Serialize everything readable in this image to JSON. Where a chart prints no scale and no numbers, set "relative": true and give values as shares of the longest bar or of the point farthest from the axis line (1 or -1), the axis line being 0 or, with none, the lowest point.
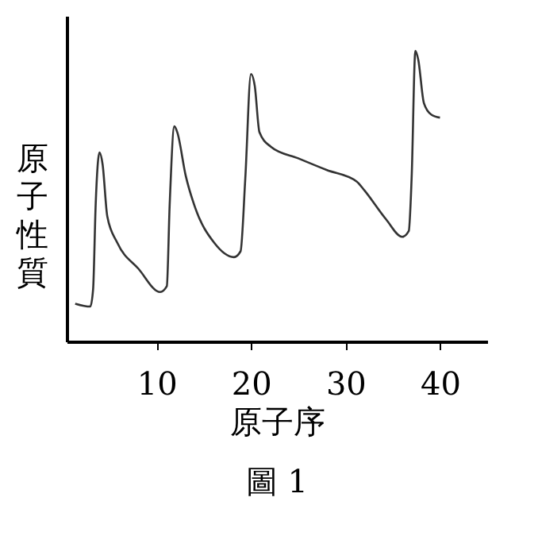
{
  "chart_data": {
    "type": "line",
    "relative": true,
    "xlabel": "原子序",
    "ylabel": "原子性質",
    "annotations": [
      "圖 1"
    ],
    "xlim": [
      0.5,
      45
    ],
    "xticks": [
      10,
      20,
      30,
      40
    ],
    "grid": false,
    "marker": "none",
    "line_style": "solid",
    "series": [
      {
        "color": "#333333",
        "x": [
          1.4,
          3.0,
          3.3,
          3.57,
          3.97,
          4.3,
          4.8,
          5.85,
          8.1,
          10.4,
          11.1,
          11.4,
          11.9,
          12.2,
          13.1,
          14.1,
          16.1,
          18.2,
          18.9,
          19.4,
          20.0,
          20.4,
          20.9,
          22.1,
          25.0,
          28.0,
          31.2,
          32.0,
          34.3,
          36.0,
          36.7,
          37.0,
          37.4,
          37.7,
          38.3,
          39.1,
          40.0
        ],
        "values": [
          0.13,
          0.12,
          0.18,
          0.47,
          0.65,
          0.61,
          0.43,
          0.34,
          0.25,
          0.17,
          0.19,
          0.47,
          0.74,
          0.72,
          0.57,
          0.46,
          0.34,
          0.29,
          0.31,
          0.56,
          0.92,
          0.88,
          0.72,
          0.67,
          0.63,
          0.59,
          0.55,
          0.52,
          0.42,
          0.36,
          0.38,
          0.56,
          1.0,
          0.97,
          0.82,
          0.78,
          0.77
        ]
      }
    ]
  }
}
